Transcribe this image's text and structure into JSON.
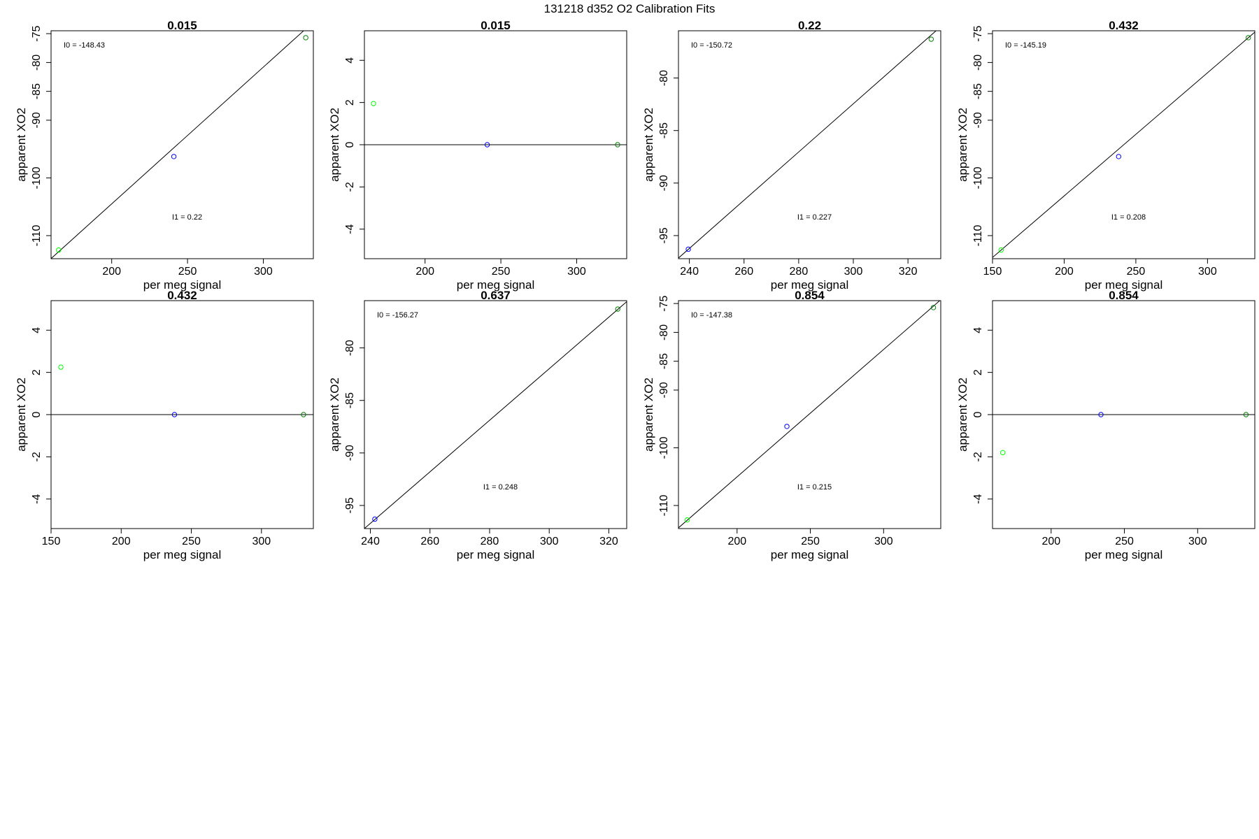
{
  "figure": {
    "title": "131218   d352   O2 Calibration Fits"
  },
  "chart_data": [
    {
      "type": "scatter",
      "title": "0.015",
      "xlabel": "per meg signal",
      "ylabel": "apparent XO2",
      "xlim": [
        160,
        333
      ],
      "ylim": [
        -114,
        -74.5
      ],
      "xticks": [
        200,
        250,
        300
      ],
      "yticks": [
        -110,
        -100,
        -90,
        -85,
        -80,
        -75
      ],
      "points": [
        {
          "x": 165,
          "y": -112.5,
          "color": "#00ff00"
        },
        {
          "x": 241,
          "y": -96.3,
          "color": "#0000ff"
        },
        {
          "x": 328,
          "y": -75.7,
          "color": "#008000"
        }
      ],
      "fit_line": {
        "slope": 0.237,
        "intercept": -151.9
      },
      "annotations": {
        "intercept": "I0 =  -148.43",
        "slope": "I1 =  0.22"
      }
    },
    {
      "type": "scatter",
      "title": "0.015",
      "xlabel": "per meg signal",
      "ylabel": "apparent XO2",
      "xlim": [
        160,
        333
      ],
      "ylim": [
        -5.4,
        5.4
      ],
      "xticks": [
        200,
        250,
        300
      ],
      "yticks": [
        -4,
        -2,
        0,
        2,
        4
      ],
      "points": [
        {
          "x": 166,
          "y": 1.95,
          "color": "#00ff00"
        },
        {
          "x": 241,
          "y": 0.0,
          "color": "#0000ff"
        },
        {
          "x": 327,
          "y": 0.0,
          "color": "#008000"
        }
      ],
      "fit_line": {
        "slope": 0,
        "intercept": 0
      },
      "annotations": {}
    },
    {
      "type": "scatter",
      "title": "0.22",
      "xlabel": "per meg signal",
      "ylabel": "apparent XO2",
      "xlim": [
        236,
        332
      ],
      "ylim": [
        -97.2,
        -75.5
      ],
      "xticks": [
        240,
        260,
        280,
        300,
        320
      ],
      "yticks": [
        -95,
        -90,
        -85,
        -80
      ],
      "points": [
        {
          "x": 239.6,
          "y": -96.3,
          "color": "#0000ff"
        },
        {
          "x": 328.5,
          "y": -76.3,
          "color": "#008000"
        }
      ],
      "fit_line": {
        "slope": 0.2295,
        "intercept": -151.3
      },
      "annotations": {
        "intercept": "I0 =  -150.72",
        "slope": "I1 =  0.227"
      }
    },
    {
      "type": "scatter",
      "title": "0.432",
      "xlabel": "per meg signal",
      "ylabel": "apparent XO2",
      "xlim": [
        150,
        333
      ],
      "ylim": [
        -114,
        -74.5
      ],
      "xticks": [
        150,
        200,
        250,
        300
      ],
      "yticks": [
        -110,
        -100,
        -90,
        -85,
        -80,
        -75
      ],
      "points": [
        {
          "x": 156,
          "y": -112.5,
          "color": "#00ff00"
        },
        {
          "x": 238,
          "y": -96.3,
          "color": "#0000ff"
        },
        {
          "x": 328.5,
          "y": -75.7,
          "color": "#008000"
        }
      ],
      "fit_line": {
        "slope": 0.2134,
        "intercept": -145.8
      },
      "annotations": {
        "intercept": "I0 =  -145.19",
        "slope": "I1 =  0.208"
      }
    },
    {
      "type": "scatter",
      "title": "0.432",
      "xlabel": "per meg signal",
      "ylabel": "apparent XO2",
      "xlim": [
        150,
        337
      ],
      "ylim": [
        -5.4,
        5.4
      ],
      "xticks": [
        150,
        200,
        250,
        300
      ],
      "yticks": [
        -4,
        -2,
        0,
        2,
        4
      ],
      "points": [
        {
          "x": 157,
          "y": 2.25,
          "color": "#00ff00"
        },
        {
          "x": 238,
          "y": 0.0,
          "color": "#0000ff"
        },
        {
          "x": 330,
          "y": 0.0,
          "color": "#008000"
        }
      ],
      "fit_line": {
        "slope": 0,
        "intercept": 0
      },
      "annotations": {}
    },
    {
      "type": "scatter",
      "title": "0.637",
      "xlabel": "per meg signal",
      "ylabel": "apparent XO2",
      "xlim": [
        238,
        326
      ],
      "ylim": [
        -97.2,
        -75.5
      ],
      "xticks": [
        240,
        260,
        280,
        300,
        320
      ],
      "yticks": [
        -95,
        -90,
        -85,
        -80
      ],
      "points": [
        {
          "x": 241.5,
          "y": -96.3,
          "color": "#0000ff"
        },
        {
          "x": 323,
          "y": -76.3,
          "color": "#008000"
        }
      ],
      "fit_line": {
        "slope": 0.2454,
        "intercept": -155.6
      },
      "annotations": {
        "intercept": "I0 =  -156.27",
        "slope": "I1 =  0.248"
      }
    },
    {
      "type": "scatter",
      "title": "0.854",
      "xlabel": "per meg signal",
      "ylabel": "apparent XO2",
      "xlim": [
        160,
        339
      ],
      "ylim": [
        -114,
        -74.5
      ],
      "xticks": [
        200,
        250,
        300
      ],
      "yticks": [
        -110,
        -100,
        -90,
        -85,
        -80,
        -75
      ],
      "points": [
        {
          "x": 166,
          "y": -112.5,
          "color": "#00ff00"
        },
        {
          "x": 234,
          "y": -96.3,
          "color": "#0000ff"
        },
        {
          "x": 334,
          "y": -75.7,
          "color": "#008000"
        }
      ],
      "fit_line": {
        "slope": 0.2208,
        "intercept": -149.2
      },
      "annotations": {
        "intercept": "I0 =  -147.38",
        "slope": "I1 =  0.215"
      }
    },
    {
      "type": "scatter",
      "title": "0.854",
      "xlabel": "per meg signal",
      "ylabel": "apparent XO2",
      "xlim": [
        160,
        339
      ],
      "ylim": [
        -5.4,
        5.4
      ],
      "xticks": [
        200,
        250,
        300
      ],
      "yticks": [
        -4,
        -2,
        0,
        2,
        4
      ],
      "points": [
        {
          "x": 167,
          "y": -1.8,
          "color": "#00ff00"
        },
        {
          "x": 234,
          "y": 0.0,
          "color": "#0000ff"
        },
        {
          "x": 333,
          "y": 0.0,
          "color": "#008000"
        }
      ],
      "fit_line": {
        "slope": 0,
        "intercept": 0
      },
      "annotations": {}
    }
  ]
}
